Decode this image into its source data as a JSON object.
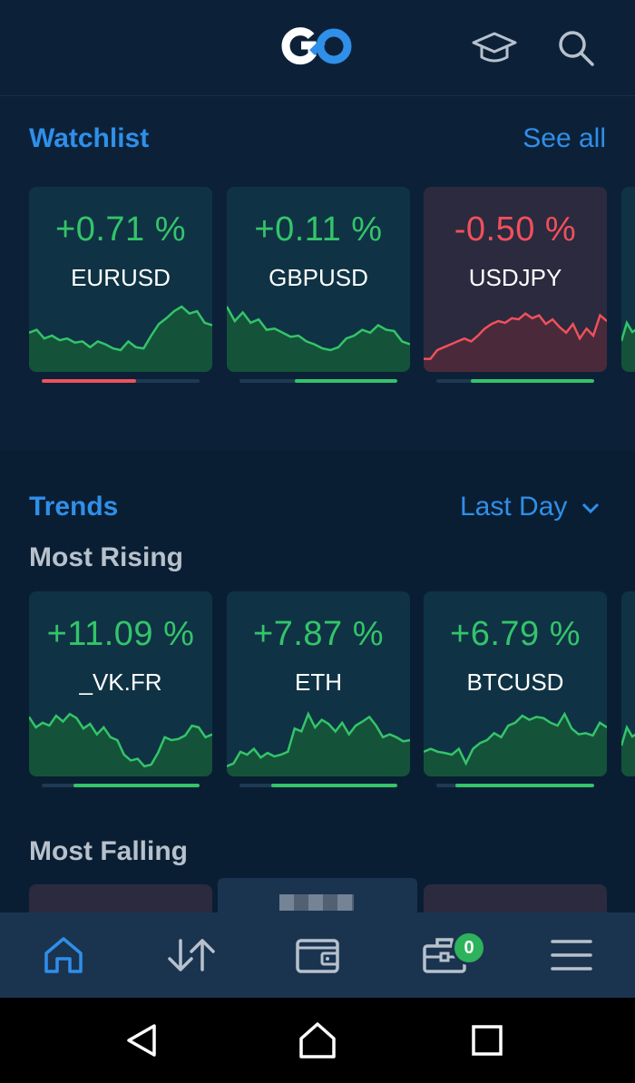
{
  "header": {
    "logo_text": "GO",
    "learn_icon": "graduation-cap-icon",
    "search_icon": "search-icon"
  },
  "watchlist": {
    "title": "Watchlist",
    "see_all": "See all",
    "cards": [
      {
        "pct": "+0.71 %",
        "symbol": "EURUSD",
        "direction": "up",
        "sentiment_sell": 0.6,
        "sentiment_buy": 0.4,
        "spark": [
          0.55,
          0.6,
          0.45,
          0.5,
          0.42,
          0.45,
          0.38,
          0.4,
          0.3,
          0.4,
          0.35,
          0.28,
          0.25,
          0.4,
          0.3,
          0.28,
          0.5,
          0.7,
          0.8,
          0.92,
          1.0,
          0.88,
          0.92,
          0.72,
          0.68
        ]
      },
      {
        "pct": "+0.11 %",
        "symbol": "GBPUSD",
        "direction": "up",
        "sentiment_sell": 0.35,
        "sentiment_buy": 0.65,
        "spark": [
          1.0,
          0.75,
          0.9,
          0.72,
          0.78,
          0.6,
          0.62,
          0.55,
          0.48,
          0.5,
          0.4,
          0.35,
          0.28,
          0.25,
          0.3,
          0.45,
          0.5,
          0.6,
          0.55,
          0.68,
          0.6,
          0.58,
          0.4,
          0.35
        ]
      },
      {
        "pct": "-0.50 %",
        "symbol": "USDJPY",
        "direction": "down",
        "sentiment_sell": 0.22,
        "sentiment_buy": 0.78,
        "spark": [
          0.1,
          0.1,
          0.25,
          0.3,
          0.35,
          0.4,
          0.45,
          0.4,
          0.5,
          0.62,
          0.7,
          0.75,
          0.72,
          0.8,
          0.78,
          0.88,
          0.8,
          0.85,
          0.7,
          0.78,
          0.65,
          0.55,
          0.7,
          0.45,
          0.62,
          0.5,
          0.85,
          0.75
        ]
      }
    ]
  },
  "trends": {
    "title": "Trends",
    "period": "Last Day",
    "most_rising": {
      "title": "Most Rising",
      "cards": [
        {
          "pct": "+11.09 %",
          "symbol": "_VK.FR",
          "direction": "up",
          "sentiment_sell": 0.2,
          "sentiment_buy": 0.8,
          "spark": [
            0.9,
            0.72,
            0.8,
            0.75,
            0.92,
            0.82,
            0.95,
            0.88,
            0.7,
            0.78,
            0.6,
            0.72,
            0.55,
            0.5,
            0.25,
            0.15,
            0.18,
            0.05,
            0.08,
            0.28,
            0.55,
            0.5,
            0.52,
            0.58,
            0.75,
            0.72,
            0.55,
            0.6
          ]
        },
        {
          "pct": "+7.87 %",
          "symbol": "ETH",
          "direction": "up",
          "sentiment_sell": 0.2,
          "sentiment_buy": 0.8,
          "spark": [
            0.05,
            0.1,
            0.3,
            0.25,
            0.35,
            0.2,
            0.28,
            0.22,
            0.25,
            0.3,
            0.7,
            0.65,
            0.95,
            0.72,
            0.85,
            0.78,
            0.65,
            0.8,
            0.6,
            0.75,
            0.82,
            0.9,
            0.75,
            0.55,
            0.6,
            0.55,
            0.48,
            0.5
          ]
        },
        {
          "pct": "+6.79 %",
          "symbol": "BTCUSD",
          "direction": "up",
          "sentiment_sell": 0.12,
          "sentiment_buy": 0.88,
          "spark": [
            0.3,
            0.35,
            0.3,
            0.28,
            0.25,
            0.35,
            0.1,
            0.35,
            0.45,
            0.5,
            0.62,
            0.55,
            0.75,
            0.8,
            0.92,
            0.85,
            0.9,
            0.88,
            0.8,
            0.75,
            0.95,
            0.7,
            0.6,
            0.62,
            0.58,
            0.8,
            0.72
          ]
        }
      ]
    },
    "most_falling": {
      "title": "Most Falling"
    }
  },
  "bottom_nav": {
    "items": [
      {
        "name": "home",
        "icon": "home-icon",
        "active": true
      },
      {
        "name": "trade",
        "icon": "sort-arrows-icon",
        "active": false
      },
      {
        "name": "wallet",
        "icon": "wallet-icon",
        "active": false
      },
      {
        "name": "portfolio",
        "icon": "briefcase-icon",
        "active": false,
        "badge": "0"
      },
      {
        "name": "menu",
        "icon": "hamburger-menu-icon",
        "active": false
      }
    ]
  },
  "colors": {
    "accent": "#2f8fe9",
    "up": "#34c46a",
    "down": "#f1505b",
    "background": "#0c2138",
    "nav": "#1a3450"
  }
}
